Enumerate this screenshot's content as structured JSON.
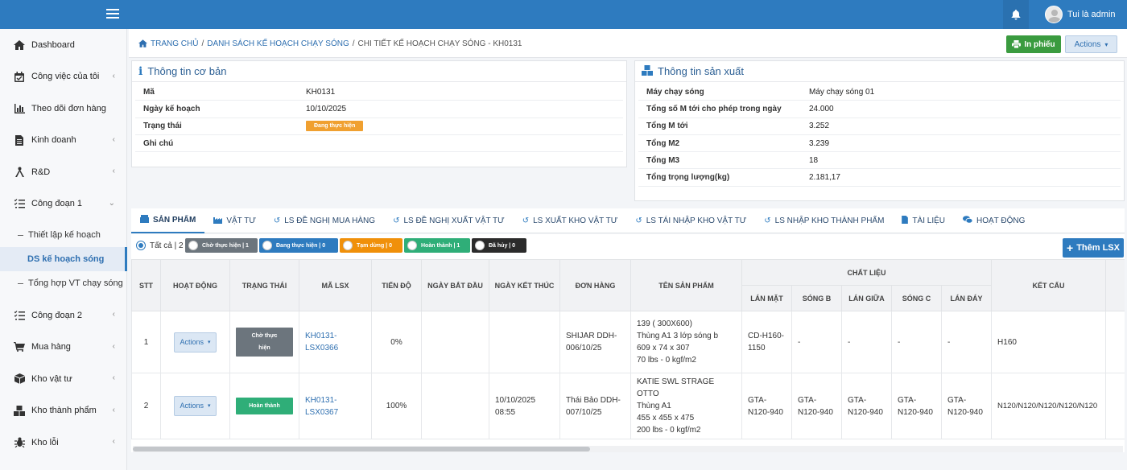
{
  "topbar": {
    "user_name": "Tui là admin"
  },
  "sidebar": {
    "items": [
      {
        "label": "Dashboard"
      },
      {
        "label": "Công việc của tôi"
      },
      {
        "label": "Theo dõi đơn hàng"
      },
      {
        "label": "Kinh doanh"
      },
      {
        "label": "R&D"
      },
      {
        "label": "Công đoạn 1"
      }
    ],
    "subitems": [
      {
        "label": "Thiết lập kế hoạch"
      },
      {
        "label": "DS kế hoạch sóng"
      },
      {
        "label": "Tổng hợp VT chạy sóng"
      }
    ],
    "items2": [
      {
        "label": "Công đoạn 2"
      },
      {
        "label": "Mua hàng"
      },
      {
        "label": "Kho vật tư"
      },
      {
        "label": "Kho thành phẩm"
      },
      {
        "label": "Kho lỗi"
      }
    ]
  },
  "breadcrumb": {
    "home": "TRANG CHỦ",
    "list": "DANH SÁCH KẾ HOẠCH CHẠY SÓNG",
    "current": "CHI TIẾT KẾ HOẠCH CHẠY SÓNG - KH0131"
  },
  "header_buttons": {
    "print": "In phiếu",
    "actions": "Actions"
  },
  "basic_info": {
    "title": "Thông tin cơ bản",
    "rows": [
      {
        "k": "Mã",
        "v": "KH0131"
      },
      {
        "k": "Ngày kế hoạch",
        "v": "10/10/2025"
      },
      {
        "k": "Trạng thái",
        "v": "Đang thực hiện"
      },
      {
        "k": "Ghi chú",
        "v": ""
      }
    ]
  },
  "prod_info": {
    "title": "Thông tin sản xuất",
    "rows": [
      {
        "k": "Máy chạy sóng",
        "v": "Máy chạy sóng 01"
      },
      {
        "k": "Tổng số M tới cho phép trong ngày",
        "v": "24.000"
      },
      {
        "k": "Tổng M tới",
        "v": "3.252"
      },
      {
        "k": "Tổng M2",
        "v": "3.239"
      },
      {
        "k": "Tổng M3",
        "v": "18"
      },
      {
        "k": "Tổng trọng lượng(kg)",
        "v": "2.181,17"
      }
    ]
  },
  "tabs": [
    "SẢN PHẨM",
    "VẬT TƯ",
    "LS ĐỀ NGHỊ MUA HÀNG",
    "LS ĐỀ NGHỊ XUẤT VẬT TƯ",
    "LS XUẤT KHO VẬT TƯ",
    "LS TÁI NHẬP KHO VẬT TƯ",
    "LS NHẬP KHO THÀNH PHẨM",
    "TÀI LIỆU",
    "HOẠT ĐỘNG"
  ],
  "filters": {
    "all": "Tất cả | 2",
    "items": [
      {
        "label": "Chờ thực hiện | 1",
        "color": "#6c757d"
      },
      {
        "label": "Đang thực hiện | 0",
        "color": "#2e7bbf"
      },
      {
        "label": "Tạm dừng | 0",
        "color": "#f0900a"
      },
      {
        "label": "Hoàn thành | 1",
        "color": "#2fae78"
      },
      {
        "label": "Đã hủy | 0",
        "color": "#2b2b2b"
      }
    ]
  },
  "add_button": "Thêm LSX",
  "table": {
    "headers": {
      "stt": "STT",
      "action": "HOẠT ĐỘNG",
      "status": "TRẠNG THÁI",
      "code": "MÃ LSX",
      "progress": "TIẾN ĐỘ",
      "start": "NGÀY BẮT ĐẦU",
      "end": "NGÀY KẾT THÚC",
      "order": "ĐƠN HÀNG",
      "product": "TÊN SẢN PHẨM",
      "material": "CHẤT LIỆU",
      "structure": "KẾT CẤU",
      "m1": "LÁN MẶT",
      "m2": "SÓNG B",
      "m3": "LÁN GIỮA",
      "m4": "SÓNG C",
      "m5": "LÁN ĐÁY"
    },
    "rows": [
      {
        "stt": "1",
        "action": "Actions",
        "status": "Chờ thực hiện",
        "status_color": "#6c757d",
        "code": "KH0131-LSX0366",
        "progress": "0%",
        "start": "",
        "end": "",
        "order": "SHIJAR DDH-006/10/25",
        "product": [
          "139 ( 300X600)",
          "Thùng A1 3 lớp sóng b",
          "609 x 74 x 307",
          "70 lbs - 0 kgf/m2"
        ],
        "m1": "CD-H160-1150",
        "m2": "-",
        "m3": "-",
        "m4": "-",
        "m5": "-",
        "structure": "H160"
      },
      {
        "stt": "2",
        "action": "Actions",
        "status": "Hoàn thành",
        "status_color": "#2fae78",
        "code": "KH0131-LSX0367",
        "progress": "100%",
        "start": "",
        "end": "10/10/2025 08:55",
        "order": "Thái Bảo DDH-007/10/25",
        "product": [
          "KATIE SWL STRAGE OTTO",
          "Thùng A1",
          "455 x 455 x 475",
          "200 lbs - 0 kgf/m2"
        ],
        "m1": "GTA-N120-940",
        "m2": "GTA-N120-940",
        "m3": "GTA-N120-940",
        "m4": "GTA-N120-940",
        "m5": "GTA-N120-940",
        "structure": "N120/N120/N120/N120/N120"
      }
    ]
  }
}
